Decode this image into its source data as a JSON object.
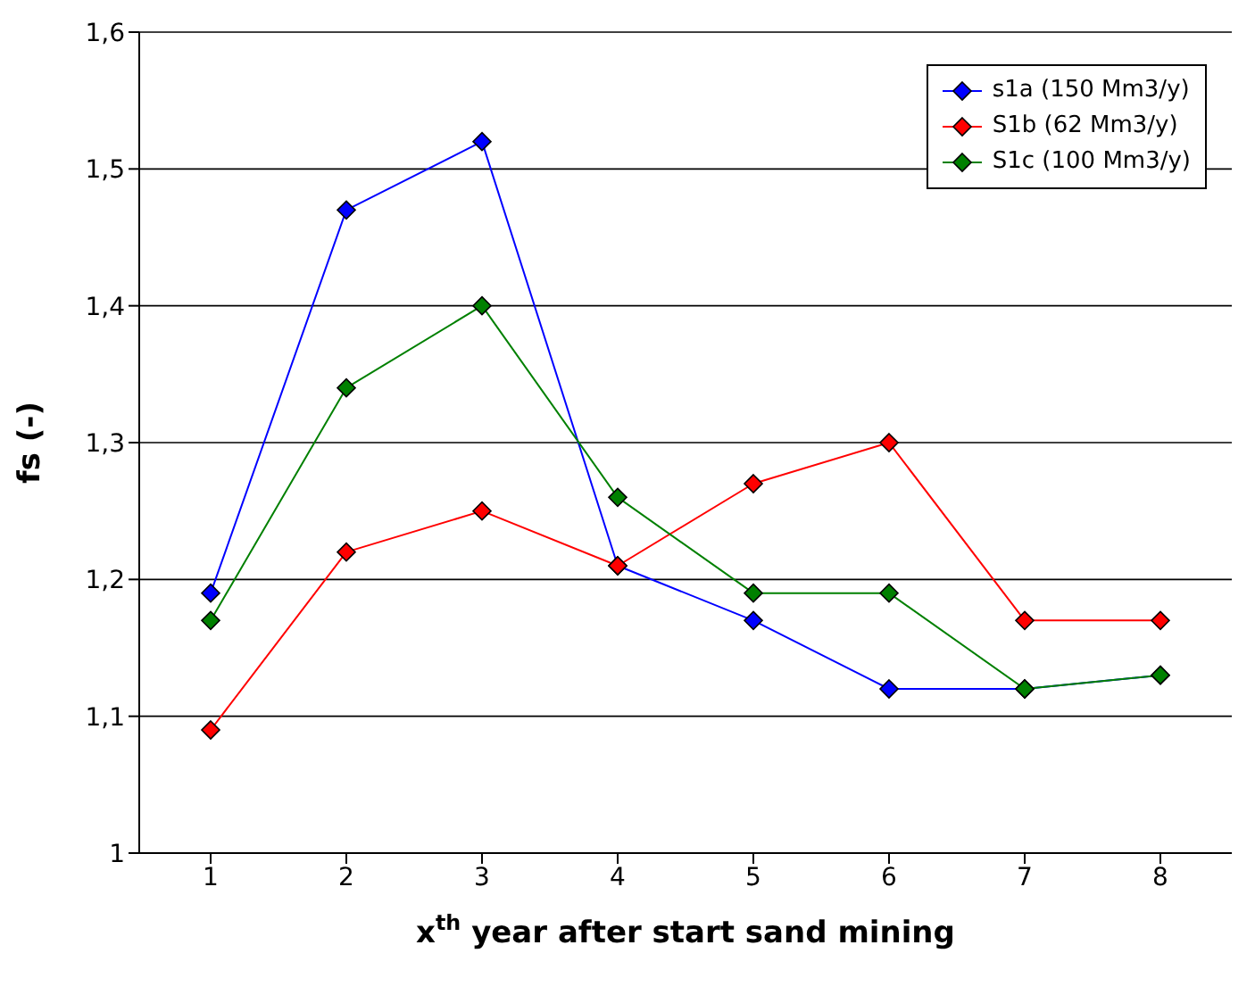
{
  "chart_data": {
    "type": "line",
    "xlabel": "x$^{th}$ year after start sand mining",
    "ylabel": "fs (-)",
    "categories": [
      "1",
      "2",
      "3",
      "4",
      "5",
      "6",
      "7",
      "8"
    ],
    "series": [
      {
        "name": "s1a (150 Mm3/y)",
        "color": "#0000ff",
        "values": [
          1.19,
          1.47,
          1.52,
          1.21,
          1.17,
          1.12,
          1.12,
          1.13
        ]
      },
      {
        "name": "S1b (62 Mm3/y)",
        "color": "#ff0000",
        "values": [
          1.09,
          1.22,
          1.25,
          1.21,
          1.27,
          1.3,
          1.17,
          1.17
        ]
      },
      {
        "name": "S1c (100 Mm3/y)",
        "color": "#008000",
        "values": [
          1.17,
          1.34,
          1.4,
          1.26,
          1.19,
          1.19,
          1.12,
          1.13
        ]
      }
    ],
    "ylim": [
      1,
      1.6
    ],
    "yticks": [
      1,
      {
        "value": 1.1,
        "label": "1,1"
      },
      {
        "value": 1.2,
        "label": "1,2"
      },
      {
        "value": 1.3,
        "label": "1,3"
      },
      {
        "value": 1.4,
        "label": "1,4"
      },
      {
        "value": 1.5,
        "label": "1,5"
      },
      {
        "value": 1.6,
        "label": "1,6"
      }
    ],
    "grid": "y",
    "legend": "top right",
    "marker": "diamond",
    "line_style": "solid"
  }
}
